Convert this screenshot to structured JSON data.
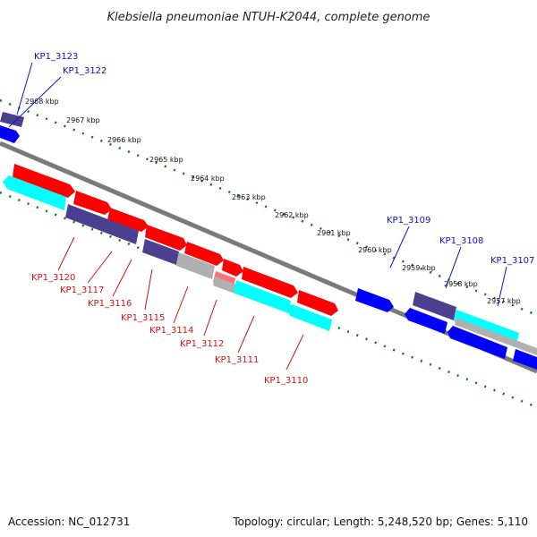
{
  "title": "Klebsiella pneumoniae NTUH-K2044, complete genome",
  "footer": {
    "accession": "Accession: NC_012731",
    "stats": "Topology: circular; Length: 5,248,520 bp; Genes: 5,110"
  },
  "scale_ticks": [
    "2968 kbp",
    "2967 kbp",
    "2966 kbp",
    "2965 kbp",
    "2964 kbp",
    "2963 kbp",
    "2962 kbp",
    "2961 kbp",
    "2960 kbp",
    "2959 kbp",
    "2958 kbp",
    "2957 kbp"
  ],
  "top_gene_labels": [
    "KP1_3123",
    "KP1_3122",
    "KP1_3109",
    "KP1_3108",
    "KP1_3107"
  ],
  "bottom_gene_labels": [
    "KP1_3120",
    "KP1_3117",
    "KP1_3116",
    "KP1_3115",
    "KP1_3114",
    "KP1_3112",
    "KP1_3111",
    "KP1_3110"
  ],
  "colors": {
    "forward_gene": "#ff0000",
    "forward_gene_alt": "#ff7070",
    "reverse_gene": "#0000ff",
    "cyan_gene": "#00ffff",
    "purple_gene": "#4b3f8f",
    "gray_feature": "#b0b0b0",
    "backbone": "#7a7a7a",
    "tick_dots": "#0a7a0a",
    "top_label": "#1010c8",
    "bottom_label": "#d01010"
  }
}
